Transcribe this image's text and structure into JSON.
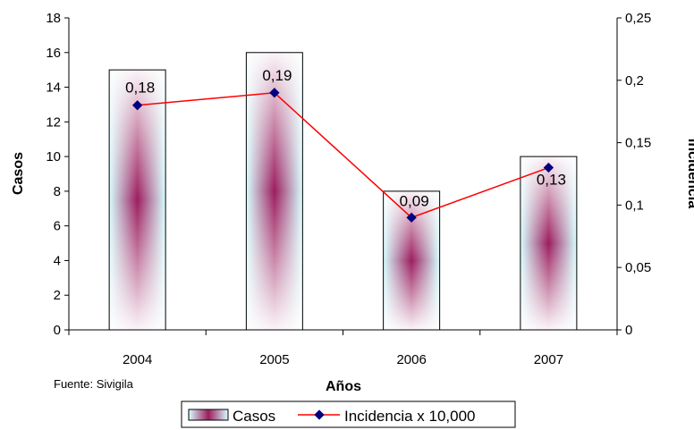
{
  "chart_data": {
    "type": "bar",
    "categories": [
      "2004",
      "2005",
      "2006",
      "2007"
    ],
    "series": [
      {
        "name": "Casos",
        "type": "bar",
        "axis": "left",
        "values": [
          15,
          16,
          8,
          10
        ]
      },
      {
        "name": "Incidencia x 10,000",
        "type": "line",
        "axis": "right",
        "values": [
          0.18,
          0.19,
          0.09,
          0.13
        ],
        "data_labels": [
          "0,18",
          "0,19",
          "0,09",
          "0,13"
        ]
      }
    ],
    "xlabel": "Años",
    "ylabel": "Casos",
    "y2label": "Incidencia",
    "ylim": [
      0,
      18
    ],
    "y2lim": [
      0,
      0.25
    ],
    "yticks": [
      "0",
      "2",
      "4",
      "6",
      "8",
      "10",
      "12",
      "14",
      "16",
      "18"
    ],
    "y2ticks": [
      "0",
      "0,05",
      "0,1",
      "0,15",
      "0,2",
      "0,25"
    ],
    "grid": false,
    "legend_position": "bottom",
    "source": "Fuente: Sivigila",
    "colors": {
      "bar_fill_outer": "#d6ffff",
      "bar_fill_center": "#9c1d5e",
      "bar_border": "#000000",
      "line": "#ff0000",
      "marker": "#000080"
    }
  }
}
